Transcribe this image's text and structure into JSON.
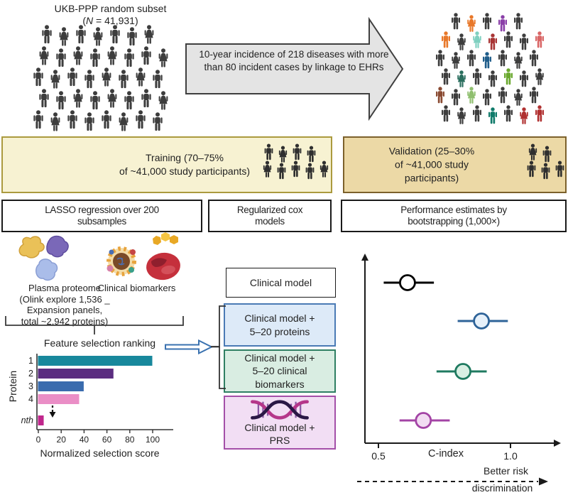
{
  "header": {
    "cohort_title": "UKB-PPP random subset",
    "n_open": "(",
    "n_italic": "N",
    "n_rest": " = 41,931)",
    "arrow_text": "10-year incidence of 218 diseases with more than 80 incident cases by linkage to EHRs"
  },
  "split": {
    "training_label": "Training (70–75%\nof ~41,000 study participants)",
    "validation_label": "Validation (25–30%\nof ~41,000 study participants)"
  },
  "method_boxes": {
    "lasso": "LASSO regression over 200\nsubsamples",
    "cox": "Regularized cox\nmodels",
    "bootstrap": "Performance estimates by\nbootstrapping (1,000×)"
  },
  "inputs": {
    "proteome_caption": "Plasma proteome\n(Olink explore 1,536 _\nExpansion panels,\ntotal ~2,942 proteins)",
    "biomarkers_caption": "Clinical biomarkers"
  },
  "models": {
    "clinical": "Clinical model",
    "proteins": "Clinical model +\n5–20 proteins",
    "biomarkers": "Clinical model +\n5–20 clinical\nbiomarkers",
    "prs": "Clinical model +\nPRS"
  },
  "footer": {
    "better_risk_line1": "Better risk",
    "better_risk_line2": "discrimination"
  },
  "chart_data": [
    {
      "type": "bar",
      "orientation": "horizontal",
      "title": "Feature selection ranking",
      "xlabel": "Normalized selection score",
      "ylabel": "Protein",
      "categories": [
        "1",
        "2",
        "3",
        "4",
        "nth"
      ],
      "values": [
        100,
        66,
        40,
        36,
        5
      ],
      "colors": [
        "#18889c",
        "#5b2d80",
        "#3a6cae",
        "#ea8ec6",
        "#c0268c"
      ],
      "xticks": [
        0,
        20,
        40,
        60,
        80,
        100
      ],
      "xlim": [
        0,
        115
      ],
      "note": "dashed down-arrow between category 4 and nth indicating omitted ranks"
    },
    {
      "type": "scatter",
      "subtype": "forest-plot",
      "xlabel": "C-index",
      "xticks": [
        0.5,
        1.0
      ],
      "xlim": [
        0.5,
        1.15
      ],
      "points": [
        {
          "name": "Clinical model",
          "x": 0.61,
          "lo": 0.52,
          "hi": 0.71,
          "stroke": "#000000",
          "fill": "#ffffff"
        },
        {
          "name": "Clinical model + 5–20 proteins",
          "x": 0.89,
          "lo": 0.8,
          "hi": 0.99,
          "stroke": "#2e6398",
          "fill": "#e7f1fa"
        },
        {
          "name": "Clinical model + 5–20 clinical biomarkers",
          "x": 0.82,
          "lo": 0.72,
          "hi": 0.91,
          "stroke": "#1f7a60",
          "fill": "#d9efe3"
        },
        {
          "name": "Clinical model + PRS",
          "x": 0.67,
          "lo": 0.58,
          "hi": 0.77,
          "stroke": "#a344a5",
          "fill": "#f2dcf2"
        }
      ]
    }
  ],
  "crowds": {
    "left": {
      "color": "#3d3d3d",
      "rows": [
        [
          "M",
          "W",
          "M",
          "W",
          "M",
          "M",
          "W"
        ],
        [
          "W",
          "M",
          "W",
          "M",
          "W",
          "M",
          "M",
          "W"
        ],
        [
          "M",
          "W",
          "M",
          "M",
          "W",
          "M",
          "W",
          "M"
        ],
        [
          "M",
          "M",
          "W",
          "M",
          "W",
          "M",
          "M",
          "W"
        ],
        [
          "M",
          "W",
          "M",
          "M",
          "M",
          "W",
          "M",
          "M"
        ]
      ]
    },
    "right": {
      "color": "#3d3d3d",
      "rows": [
        [
          "M",
          "W:#e8782a",
          "M",
          "M:#8a3fa8",
          "M"
        ],
        [
          "M:#e8782a",
          "W",
          "W:#7fd0c0",
          "M:#a83434",
          "M",
          "M",
          "M:#d96666"
        ],
        [
          "M",
          "W",
          "M",
          "M:#1f5d8a",
          "M",
          "W",
          "M"
        ],
        [
          "M",
          "W:#2a6e5e",
          "M",
          "M",
          "M:#6aa82e",
          "M",
          "W"
        ],
        [
          "M:#8a4a32",
          "M",
          "W:#8fbf6f",
          "M",
          "M",
          "W",
          "M"
        ],
        [
          "M",
          "W",
          "M",
          "M:#0f7a6a",
          "M",
          "W:#b03030",
          "M:#b03030"
        ]
      ]
    },
    "training": {
      "color": "#2f2f2f",
      "rows": [
        [
          "M",
          "W",
          "M",
          "M"
        ],
        [
          "W",
          "M",
          "M",
          "M",
          "W"
        ]
      ]
    },
    "validation": {
      "color": "#2f2f2f",
      "rows": [
        [
          "W",
          "M"
        ],
        [
          "M",
          "M",
          "M"
        ]
      ]
    }
  },
  "palette": {
    "arrow_fill": "#e4e4e4",
    "training_bg": "#f7f2d2",
    "validation_bg": "#ecd9a6",
    "proteins_box": "#ddeaf8",
    "biomarkers_box": "#d9ede2",
    "prs_box": "#f2def4"
  }
}
